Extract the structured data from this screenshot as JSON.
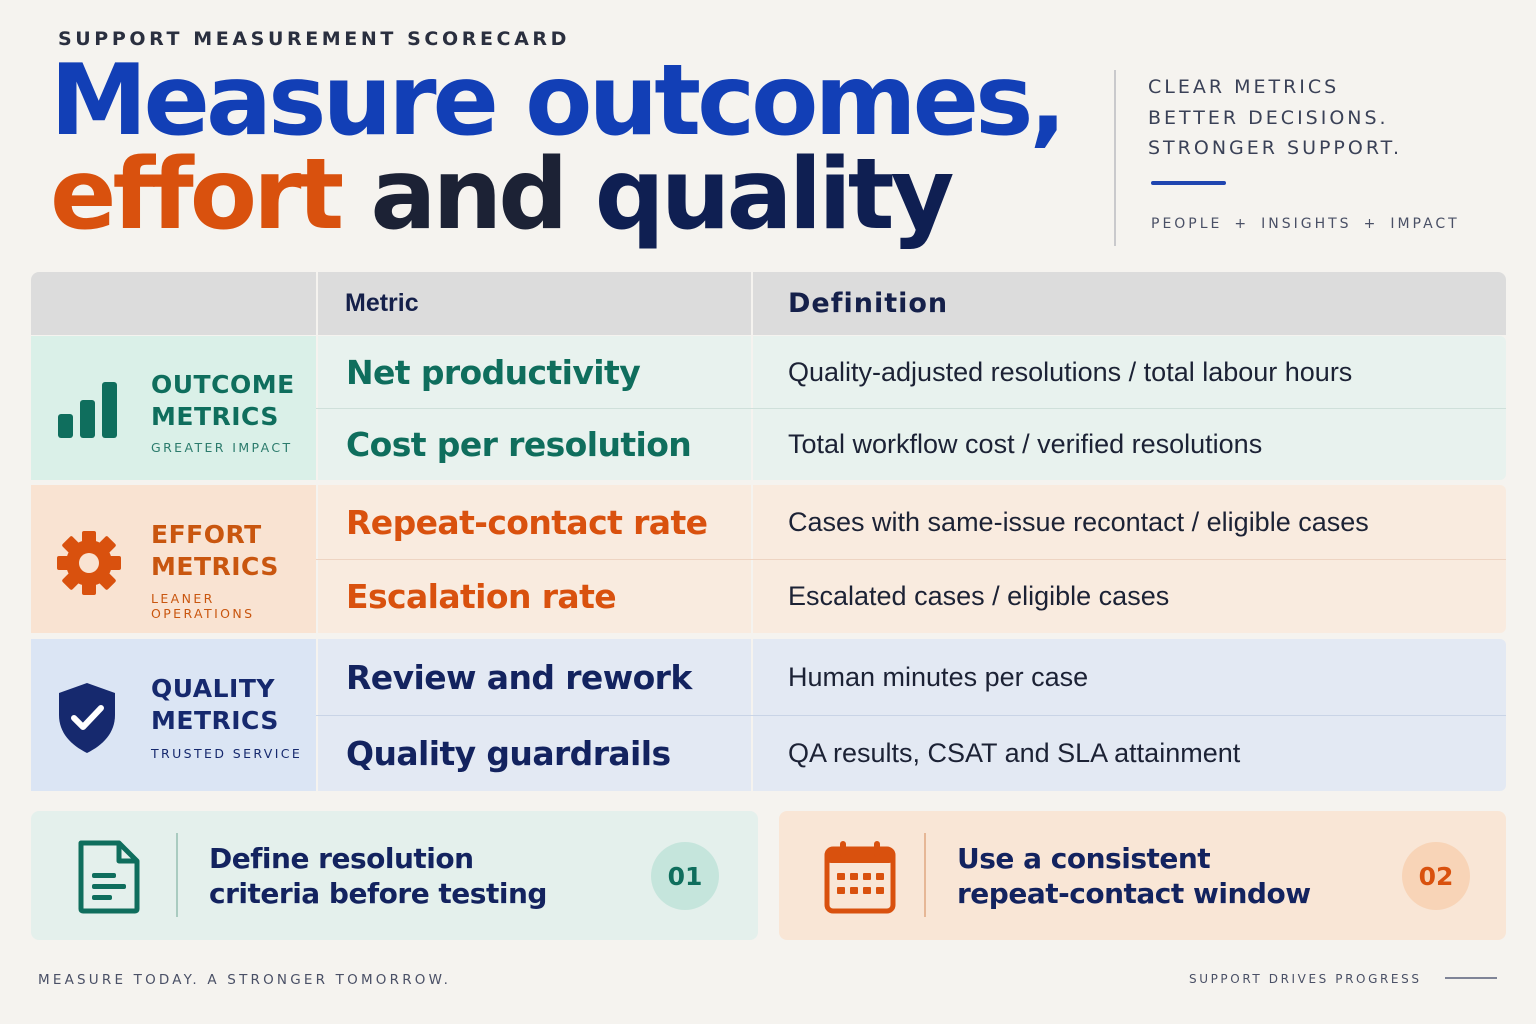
{
  "eyebrow": "SUPPORT MEASUREMENT SCORECARD",
  "headline": {
    "line1": "Measure outcomes,",
    "word_effort": "effort",
    "word_and": "and",
    "word_quality": "quality"
  },
  "tagline": {
    "line1": "CLEAR METRICS",
    "line2": "BETTER DECISIONS.",
    "line3": "STRONGER SUPPORT."
  },
  "pillars": {
    "a": "PEOPLE",
    "b": "INSIGHTS",
    "c": "IMPACT",
    "separator": "+"
  },
  "table": {
    "header_metric": "Metric",
    "header_definition": "Definition",
    "groups": [
      {
        "title_line1": "OUTCOME",
        "title_line2": "METRICS",
        "subtitle": "GREATER IMPACT",
        "icon": "bar-chart-icon",
        "color": "#0f6e5d",
        "rows": [
          {
            "metric": "Net productivity",
            "definition": "Quality-adjusted resolutions / total labour hours"
          },
          {
            "metric": "Cost per resolution",
            "definition": "Total workflow cost / verified resolutions"
          }
        ]
      },
      {
        "title_line1": "EFFORT",
        "title_line2": "METRICS",
        "subtitle": "LEANER OPERATIONS",
        "icon": "gear-icon",
        "color": "#d9510e",
        "rows": [
          {
            "metric": "Repeat-contact rate",
            "definition": "Cases with same-issue recontact / eligible cases"
          },
          {
            "metric": "Escalation rate",
            "definition": "Escalated cases / eligible cases"
          }
        ]
      },
      {
        "title_line1": "QUALITY",
        "title_line2": "METRICS",
        "subtitle": "TRUSTED SERVICE",
        "icon": "shield-check-icon",
        "color": "#16296e",
        "rows": [
          {
            "metric": "Review and rework",
            "definition": "Human minutes per case"
          },
          {
            "metric": "Quality guardrails",
            "definition": "QA results, CSAT and SLA attainment"
          }
        ]
      }
    ]
  },
  "cards": [
    {
      "line1": "Define resolution",
      "line2": "criteria before testing",
      "number": "01",
      "icon": "document-icon"
    },
    {
      "line1": "Use a consistent",
      "line2": "repeat-contact window",
      "number": "02",
      "icon": "calendar-icon"
    }
  ],
  "footer": {
    "left": "MEASURE TODAY. A STRONGER TOMORROW.",
    "right": "SUPPORT DRIVES PROGRESS"
  }
}
